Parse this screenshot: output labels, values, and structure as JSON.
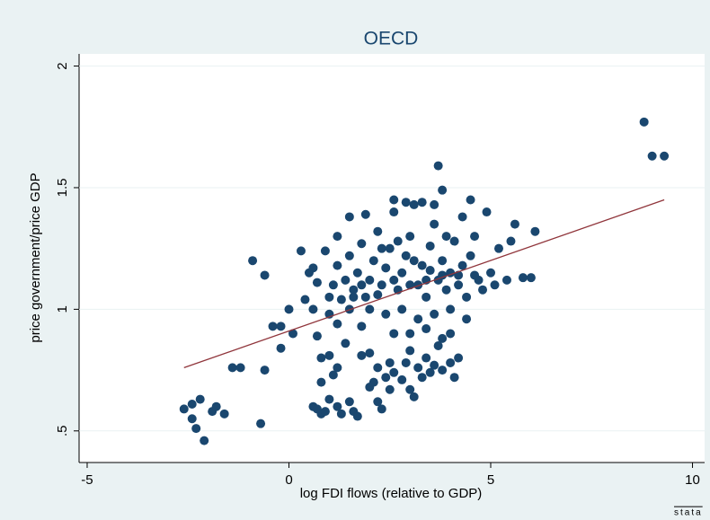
{
  "chart_data": {
    "type": "scatter",
    "title": "OECD",
    "x_label": "log FDI flows (relative to GDP)",
    "y_label": "price government/price GDP",
    "xlim": [
      -5.2,
      10.3
    ],
    "ylim": [
      0.37,
      2.05
    ],
    "xticks": [
      -5,
      0,
      5,
      10
    ],
    "yticks": [
      {
        "value": 0.5,
        "label": ".5"
      },
      1,
      1.5,
      2
    ],
    "color": "#1a476f",
    "fit_color": "#90353b",
    "watermark": "stata",
    "points": {
      "x": [
        -2.6,
        -2.4,
        -2.4,
        -2.3,
        -2.2,
        -2.1,
        -1.9,
        -1.8,
        -1.6,
        -1.4,
        -1.2,
        -0.9,
        -0.7,
        -0.6,
        -0.6,
        -0.4,
        -0.2,
        -0.2,
        0,
        0.1,
        0.3,
        0.6,
        0.7,
        0.8,
        0.9,
        0.4,
        0.5,
        0.6,
        0.7,
        0.7,
        0.8,
        0.8,
        0.9,
        1.0,
        1.0,
        1.1,
        1.2,
        1.2,
        1.2,
        1.3,
        1.4,
        1.5,
        1.5,
        1.6,
        1.7,
        1.8,
        1.8,
        1.9,
        2.0,
        2.0,
        2.1,
        2.2,
        2.2,
        2.3,
        2.4,
        2.5,
        2.5,
        2.6,
        2.8,
        2.9,
        3.0,
        3.1,
        3.0,
        3.2,
        3.3,
        3.4,
        3.5,
        3.6,
        3.8,
        4.0,
        4.2,
        4.1,
        3.8,
        3.7,
        1.0,
        1.1,
        1.2,
        1.3,
        1.4,
        1.5,
        1.6,
        1.7,
        1.8,
        1.9,
        2.0,
        2.1,
        2.2,
        2.3,
        2.4,
        2.5,
        2.6,
        2.7,
        2.8,
        2.9,
        3.0,
        3.1,
        3.2,
        3.3,
        3.4,
        3.5,
        3.6,
        3.7,
        3.8,
        3.9,
        4.0,
        4.1,
        4.2,
        4.3,
        4.4,
        4.5,
        4.6,
        4.7,
        4.8,
        4.9,
        5.0,
        5.2,
        5.4,
        5.6,
        5.8,
        6.0,
        6.1,
        5.5,
        2.0,
        2.4,
        2.8,
        3.2,
        3.6,
        4.0,
        4.4,
        2.6,
        2.9,
        3.3,
        3.6,
        4.5,
        3.7,
        3.8,
        1.6,
        1.8,
        2.2,
        2.6,
        3.0,
        3.4,
        3.8,
        4.2,
        4.6,
        5.1,
        2.3,
        2.7,
        3.1,
        3.5,
        3.9,
        4.3,
        1.5,
        1.2,
        0.6,
        1.0,
        3.0,
        2.6,
        3.4,
        4.0,
        8.8,
        9.0,
        9.3
      ],
      "y": [
        0.59,
        0.61,
        0.55,
        0.51,
        0.63,
        0.46,
        0.58,
        0.6,
        0.57,
        0.76,
        0.76,
        1.2,
        0.53,
        0.75,
        1.14,
        0.93,
        0.84,
        0.93,
        1.0,
        0.9,
        1.24,
        0.6,
        0.59,
        0.57,
        0.58,
        1.04,
        1.15,
        1.17,
        1.11,
        0.89,
        0.8,
        0.7,
        1.24,
        0.63,
        0.81,
        0.73,
        0.94,
        0.76,
        0.6,
        0.57,
        0.86,
        1.0,
        0.62,
        0.58,
        0.56,
        0.81,
        0.93,
        1.39,
        0.68,
        0.82,
        0.7,
        0.62,
        0.76,
        0.59,
        0.72,
        0.78,
        0.67,
        0.74,
        0.71,
        0.78,
        0.67,
        0.64,
        0.83,
        0.76,
        0.72,
        0.8,
        0.74,
        0.77,
        0.75,
        0.78,
        0.8,
        0.72,
        0.88,
        0.85,
        1.05,
        1.1,
        1.18,
        1.04,
        1.12,
        1.22,
        1.08,
        1.15,
        1.27,
        1.05,
        1.12,
        1.2,
        1.32,
        1.1,
        1.17,
        1.25,
        1.4,
        1.08,
        1.15,
        1.22,
        1.3,
        1.43,
        1.1,
        1.18,
        1.05,
        1.26,
        1.35,
        1.12,
        1.2,
        1.08,
        1.15,
        1.28,
        1.1,
        1.18,
        1.05,
        1.22,
        1.3,
        1.12,
        1.08,
        1.4,
        1.15,
        1.25,
        1.12,
        1.35,
        1.13,
        1.13,
        1.32,
        1.28,
        1.0,
        0.98,
        1.0,
        0.96,
        0.98,
        1.0,
        0.96,
        1.45,
        1.44,
        1.44,
        1.43,
        1.45,
        1.59,
        1.49,
        1.05,
        1.1,
        1.06,
        1.12,
        1.1,
        1.12,
        1.14,
        1.14,
        1.14,
        1.1,
        1.25,
        1.28,
        1.2,
        1.16,
        1.3,
        1.38,
        1.38,
        1.3,
        1.0,
        0.98,
        0.9,
        0.9,
        0.92,
        0.9,
        1.77,
        1.63,
        1.63
      ]
    },
    "fit": {
      "x": [
        -2.6,
        9.3
      ],
      "y": [
        0.76,
        1.45
      ]
    }
  }
}
